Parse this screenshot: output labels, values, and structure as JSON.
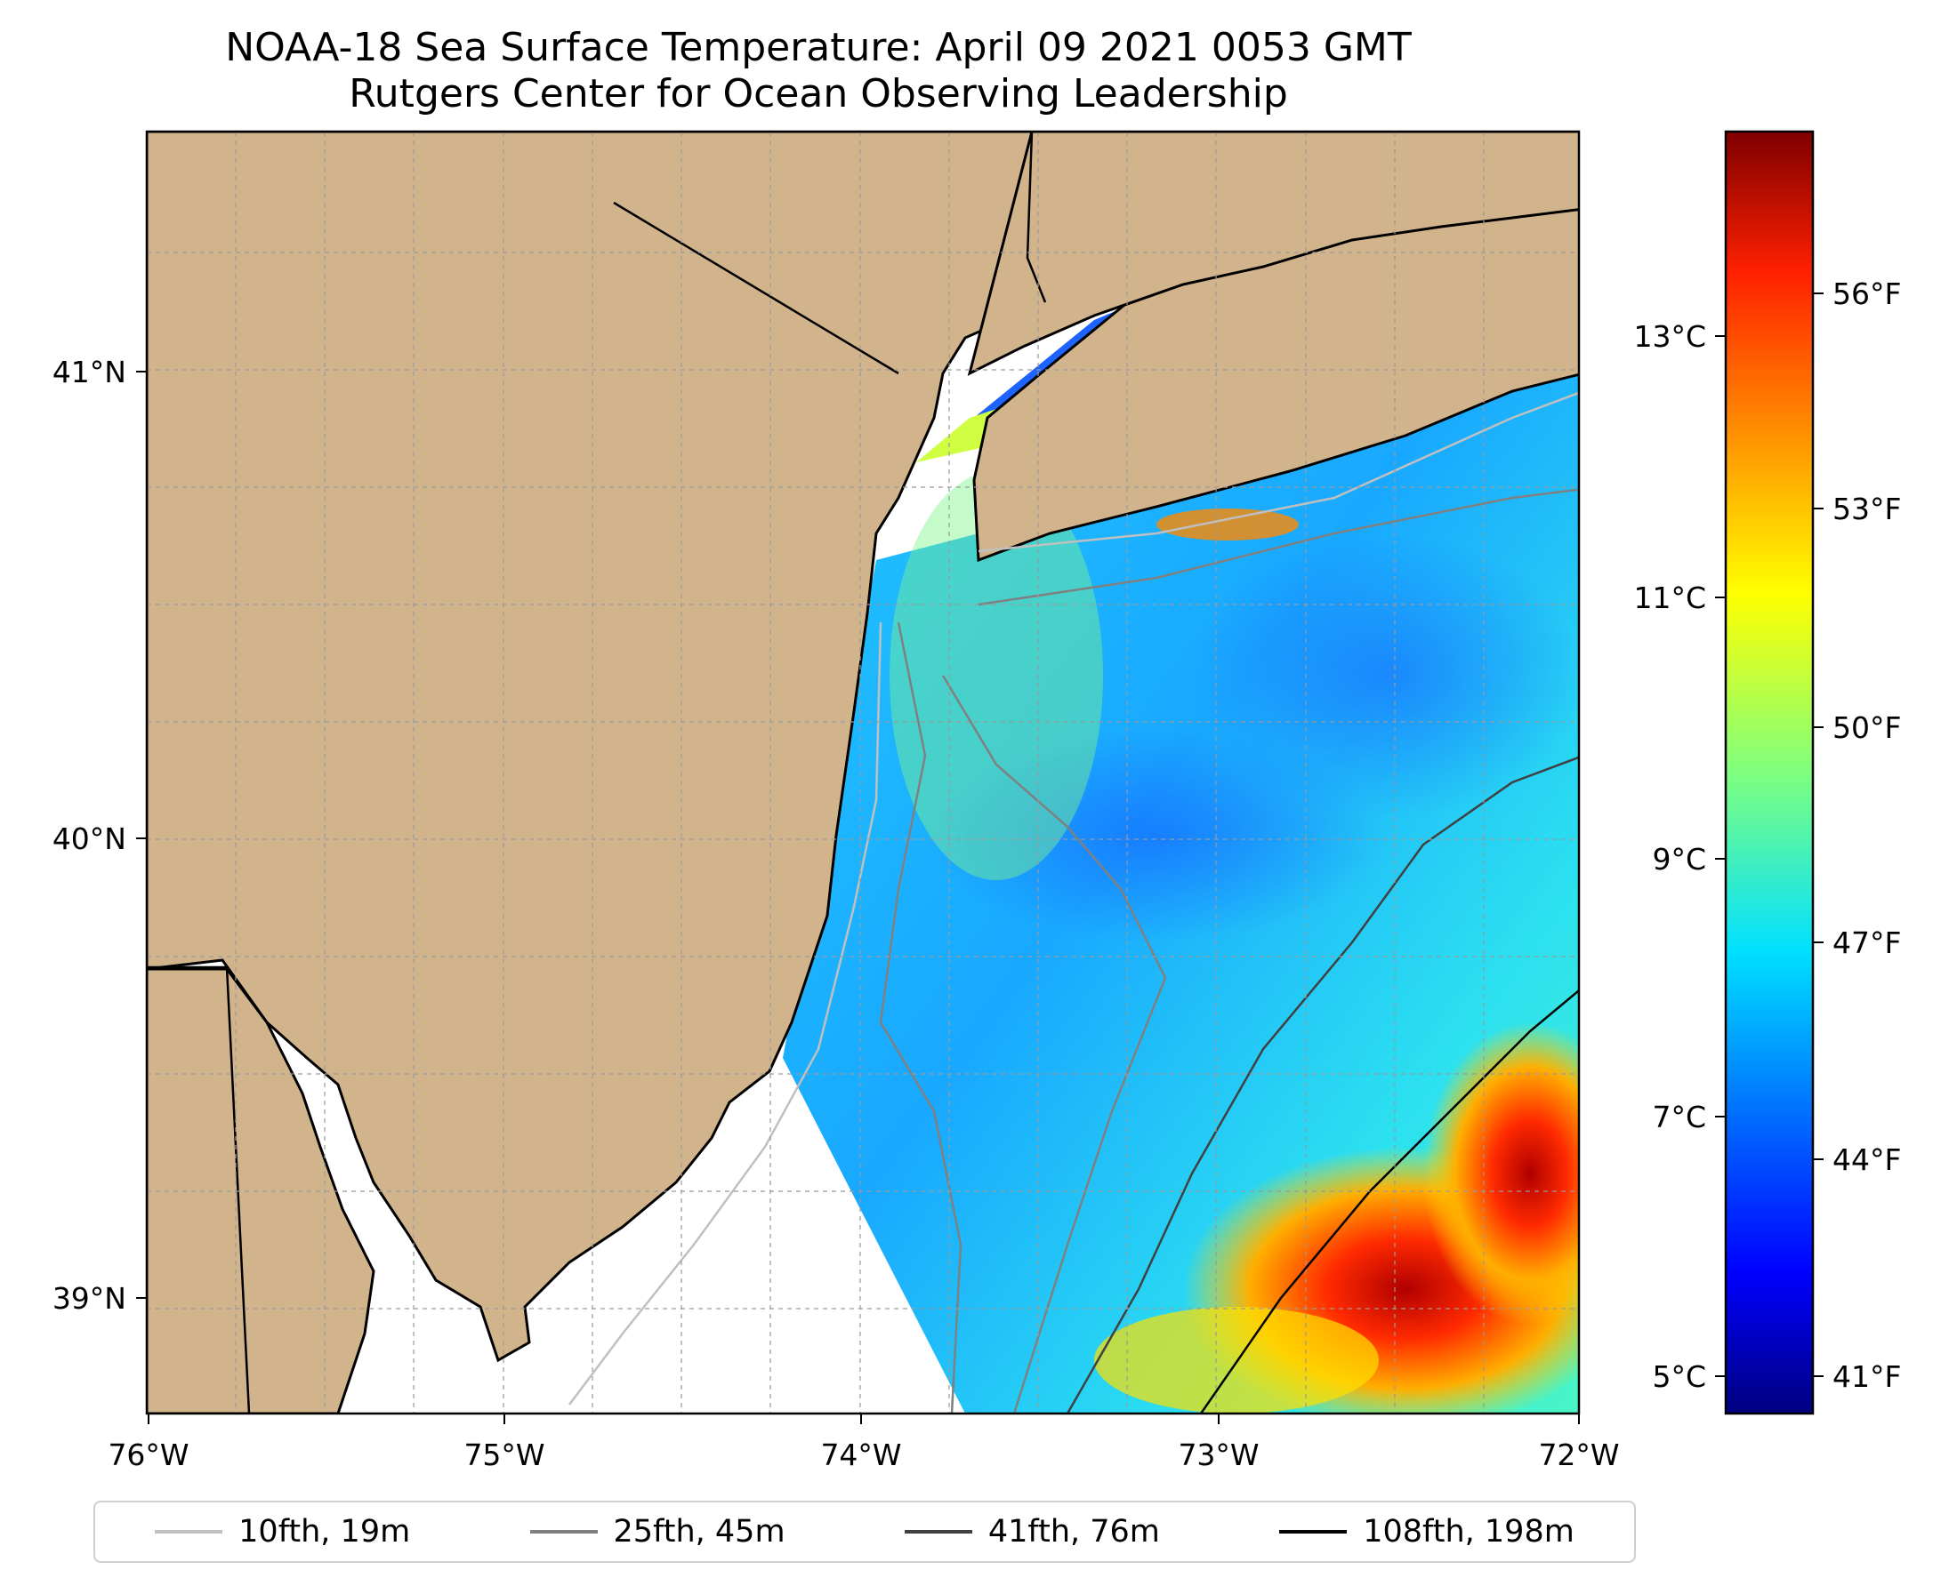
{
  "title": {
    "line1": "NOAA-18 Sea Surface Temperature: April 09 2021 0053 GMT",
    "line2": "Rutgers Center for Ocean Observing Leadership"
  },
  "map": {
    "lon_ticks": [
      "76°W",
      "75°W",
      "74°W",
      "73°W",
      "72°W"
    ],
    "lat_ticks": [
      "41°N",
      "40°N",
      "39°N"
    ],
    "land_color": "#d2b48c",
    "gridlines": true
  },
  "colorbar": {
    "celsius_ticks": [
      "13°C",
      "11°C",
      "9°C",
      "7°C",
      "5°C"
    ],
    "fahrenheit_ticks": [
      "56°F",
      "53°F",
      "50°F",
      "47°F",
      "44°F",
      "41°F"
    ],
    "colormap": "jet"
  },
  "legend": {
    "items": [
      {
        "label": "10fth, 19m",
        "color": "#c0c0c0"
      },
      {
        "label": "25fth, 45m",
        "color": "#808080"
      },
      {
        "label": "41fth, 76m",
        "color": "#404040"
      },
      {
        "label": "108fth, 198m",
        "color": "#000000"
      }
    ]
  }
}
